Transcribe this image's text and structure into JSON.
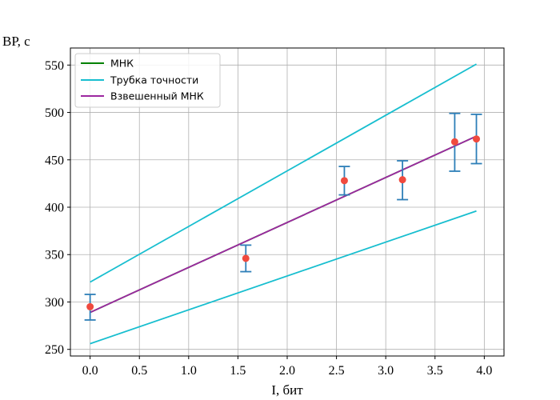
{
  "chart_data": {
    "type": "line",
    "xlabel": "I, бит",
    "ylabel": "ВР, с",
    "xlim": [
      -0.2,
      4.2
    ],
    "ylim": [
      243,
      568
    ],
    "xticks": [
      "0.0",
      "0.5",
      "1.0",
      "1.5",
      "2.0",
      "2.5",
      "3.0",
      "3.5",
      "4.0"
    ],
    "yticks": [
      "250",
      "300",
      "350",
      "400",
      "450",
      "500",
      "550"
    ],
    "grid": true,
    "legend_position": "top-left",
    "legend": [
      {
        "label": "МНК",
        "color": "#008000"
      },
      {
        "label": "Трубка точности",
        "color": "#17becf"
      },
      {
        "label": "Взвешенный МНК",
        "color": "#9c27a0"
      }
    ],
    "lines": [
      {
        "name": "МНК",
        "color": "#008000",
        "x": [
          0,
          3.92
        ],
        "y": [
          289,
          475
        ]
      },
      {
        "name": "Трубка точности",
        "color": "#17becf",
        "x": [
          0,
          3.92
        ],
        "y": [
          321,
          551
        ]
      },
      {
        "name": "Трубка точности",
        "color": "#17becf",
        "x": [
          0,
          3.92
        ],
        "y": [
          256,
          396
        ]
      },
      {
        "name": "Взвешенный МНК",
        "color": "#9c27a0",
        "x": [
          0,
          3.92
        ],
        "y": [
          289,
          475
        ]
      }
    ],
    "points": {
      "color": "#f04a3e",
      "errorbar_color": "#2e7fb8",
      "x": [
        0,
        1.58,
        2.58,
        3.17,
        3.7,
        3.92
      ],
      "y": [
        295,
        346,
        428,
        429,
        469,
        472
      ],
      "err_low": [
        281,
        332,
        413,
        408,
        438,
        446
      ],
      "err_high": [
        308,
        360,
        443,
        449,
        499,
        498
      ]
    }
  }
}
